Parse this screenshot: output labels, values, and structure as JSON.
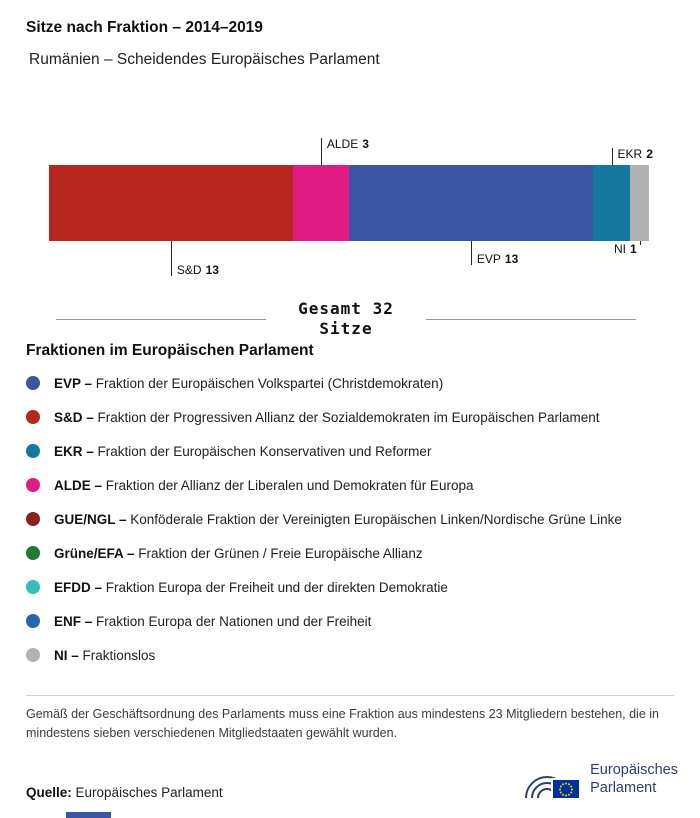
{
  "header": {
    "title": "Sitze nach Fraktion – 2014–2019",
    "subtitle": "Rumänien – Scheidendes Europäisches Parlament"
  },
  "chart_data": {
    "type": "bar",
    "variant": "stacked-horizontal",
    "title": "Sitze nach Fraktion – 2014–2019",
    "total_seats": 32,
    "total_label_line1": "Gesamt 32",
    "total_label_line2": "Sitze",
    "categories": [
      "S&D",
      "ALDE",
      "EVP",
      "EKR",
      "NI"
    ],
    "values": [
      13,
      3,
      13,
      2,
      1
    ],
    "segments": [
      {
        "label": "S&D",
        "seats": 13,
        "color": "#b82620",
        "callout": {
          "side": "below",
          "line": 35
        }
      },
      {
        "label": "ALDE",
        "seats": 3,
        "color": "#e01b84",
        "callout": {
          "side": "above",
          "line": 27
        }
      },
      {
        "label": "EVP",
        "seats": 13,
        "color": "#3a55a4",
        "callout": {
          "side": "below",
          "line": 24
        }
      },
      {
        "label": "EKR",
        "seats": 2,
        "color": "#15799f",
        "callout": {
          "side": "above",
          "line": 17
        }
      },
      {
        "label": "NI",
        "seats": 1,
        "color": "#b1b1b1",
        "callout": {
          "side": "below",
          "line": 4,
          "label_top": 1,
          "text_side": "left"
        }
      }
    ]
  },
  "legend": {
    "heading": "Fraktionen im Europäischen Parlament",
    "separator": "–",
    "items": [
      {
        "abbr": "EVP",
        "name": "Fraktion der Europäischen Volkspartei (Christdemokraten)",
        "color": "#3a55a4"
      },
      {
        "abbr": "S&D",
        "name": "Fraktion der Progressiven Allianz der Sozialdemokraten im Europäischen Parlament",
        "color": "#b82620"
      },
      {
        "abbr": "EKR",
        "name": "Fraktion der Europäischen Konservativen und Reformer",
        "color": "#15799f"
      },
      {
        "abbr": "ALDE",
        "name": "Fraktion der Allianz der Liberalen und Demokraten für Europa",
        "color": "#e01b84"
      },
      {
        "abbr": "GUE/NGL",
        "name": "Konföderale Fraktion der Vereinigten Europäischen Linken/Nordische Grüne Linke",
        "color": "#8d2020"
      },
      {
        "abbr": "Grüne/EFA",
        "name": "Fraktion der Grünen / Freie Europäische Allianz",
        "color": "#207a36"
      },
      {
        "abbr": "EFDD",
        "name": "Fraktion Europa der Freiheit und der direkten Demokratie",
        "color": "#36bcb9"
      },
      {
        "abbr": "ENF",
        "name": "Fraktion Europa der Nationen und der Freiheit",
        "color": "#2766ad"
      },
      {
        "abbr": "NI",
        "name": "Fraktionslos",
        "color": "#b1b1b1"
      }
    ]
  },
  "footnote": "Gemäß der Geschäftsordnung des Parlaments muss eine Fraktion aus mindestens 23 Mitgliedern bestehen, die in mindestens sieben verschiedenen Mitgliedstaaten gewählt wurden.",
  "source": {
    "label": "Quelle:",
    "text": "Europäisches Parlament"
  },
  "logo": {
    "line1": "Europäisches",
    "line2": "Parlament"
  }
}
